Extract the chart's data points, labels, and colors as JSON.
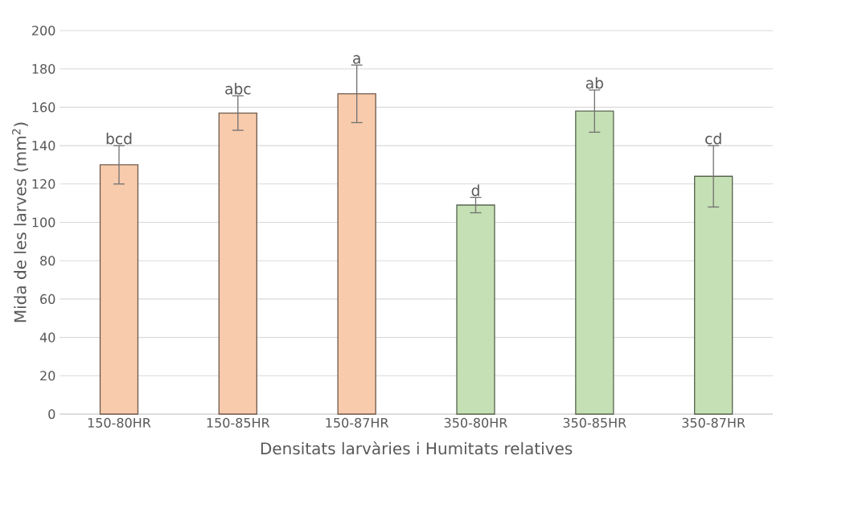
{
  "chart_data": {
    "type": "bar",
    "xlabel": "Densitats larvàries i Humitats relatives",
    "ylabel": "Mida de les larves (mm$^{2}$)",
    "categories": [
      "150-80HR",
      "150-85HR",
      "150-87HR",
      "350-80HR",
      "350-85HR",
      "350-87HR"
    ],
    "values": [
      130,
      157,
      167,
      109,
      158,
      124
    ],
    "errors": [
      10,
      9,
      15,
      4,
      11,
      16
    ],
    "colors": [
      "#f8cbad",
      "#f8cbad",
      "#f8cbad",
      "#c5e0b4",
      "#c5e0b4",
      "#c5e0b4"
    ],
    "ylim": [
      0,
      200
    ],
    "yticks": [
      0,
      20,
      40,
      60,
      80,
      100,
      120,
      140,
      160,
      180,
      200
    ],
    "grid": "y",
    "annotations": [
      {
        "text": "bcd",
        "x": "150-80HR",
        "y": 140
      },
      {
        "text": "abc",
        "x": "150-85HR",
        "y": 166
      },
      {
        "text": "a",
        "x": "150-87HR",
        "y": 182
      },
      {
        "text": "d",
        "x": "350-80HR",
        "y": 113
      },
      {
        "text": "ab",
        "x": "350-85HR",
        "y": 169
      },
      {
        "text": "cd",
        "x": "350-87HR",
        "y": 140
      }
    ]
  }
}
